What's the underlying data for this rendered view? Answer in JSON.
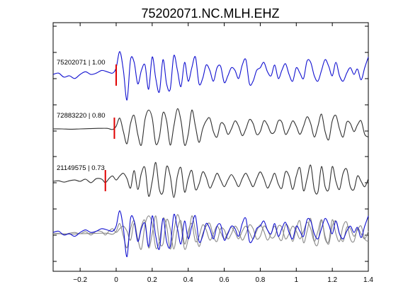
{
  "chart_data": {
    "type": "line",
    "title": "75202071.NC.MLH.EHZ",
    "xlabel": "",
    "ylabel": "",
    "xlim": [
      -0.35,
      1.4
    ],
    "xticks": [
      -0.2,
      0,
      0.2,
      0.4,
      0.6,
      0.8,
      1,
      1.2,
      1.4
    ],
    "xtick_labels": [
      "−0.2",
      "0",
      "0.2",
      "0.4",
      "0.6",
      "0.8",
      "1",
      "1.2",
      "1.4"
    ],
    "grid": false,
    "colors": {
      "reference": "#1010d0",
      "matches": "#303030",
      "overlay": "#8a8a8a",
      "pick": "#e00000"
    },
    "traces": [
      {
        "label": "75202071 | 1.00",
        "id": "75202071",
        "correlation": 1.0,
        "color": "#1010d0",
        "pick_time": 0.0,
        "x": [
          -0.35,
          -0.32,
          -0.29,
          -0.26,
          -0.23,
          -0.2,
          -0.17,
          -0.14,
          -0.11,
          -0.08,
          -0.05,
          -0.02,
          0.0,
          0.02,
          0.04,
          0.06,
          0.08,
          0.1,
          0.12,
          0.14,
          0.16,
          0.18,
          0.2,
          0.22,
          0.24,
          0.26,
          0.28,
          0.3,
          0.32,
          0.34,
          0.36,
          0.38,
          0.4,
          0.42,
          0.44,
          0.46,
          0.48,
          0.5,
          0.52,
          0.54,
          0.56,
          0.58,
          0.6,
          0.62,
          0.64,
          0.66,
          0.68,
          0.7,
          0.72,
          0.74,
          0.76,
          0.78,
          0.8,
          0.82,
          0.84,
          0.86,
          0.88,
          0.9,
          0.92,
          0.94,
          0.96,
          0.98,
          1.0,
          1.02,
          1.04,
          1.06,
          1.08,
          1.1,
          1.12,
          1.14,
          1.16,
          1.18,
          1.2,
          1.22,
          1.24,
          1.26,
          1.28,
          1.3,
          1.32,
          1.34,
          1.36,
          1.38,
          1.4
        ],
        "y": [
          0.05,
          0.1,
          -0.05,
          0.0,
          -0.1,
          0.05,
          0.15,
          0.05,
          0.1,
          0.2,
          0.15,
          0.1,
          0.3,
          0.9,
          0.2,
          -0.9,
          0.6,
          0.5,
          -0.3,
          0.2,
          0.4,
          -0.5,
          0.7,
          -0.1,
          -0.6,
          0.6,
          -0.3,
          -0.5,
          0.75,
          0.2,
          -0.4,
          0.5,
          -0.2,
          0.3,
          0.7,
          -0.3,
          -0.1,
          0.4,
          0.2,
          -0.2,
          0.3,
          0.35,
          -0.25,
          0.0,
          0.3,
          0.2,
          -0.1,
          0.4,
          0.6,
          -0.3,
          -0.2,
          0.2,
          0.3,
          0.5,
          0.15,
          0.0,
          0.4,
          -0.1,
          0.2,
          0.45,
          0.05,
          -0.2,
          0.3,
          0.1,
          -0.1,
          0.55,
          0.5,
          0.0,
          -0.2,
          0.2,
          0.6,
          0.35,
          0.0,
          0.5,
          0.0,
          -0.2,
          0.1,
          0.3,
          0.05,
          0.25,
          -0.15,
          0.3,
          0.7
        ]
      },
      {
        "label": "72883220 | 0.80",
        "id": "72883220",
        "correlation": 0.8,
        "color": "#303030",
        "pick_time": -0.01,
        "x": [
          -0.35,
          -0.3,
          -0.25,
          -0.2,
          -0.15,
          -0.1,
          -0.05,
          -0.02,
          0.0,
          0.02,
          0.04,
          0.06,
          0.08,
          0.1,
          0.12,
          0.14,
          0.16,
          0.18,
          0.2,
          0.22,
          0.24,
          0.26,
          0.28,
          0.3,
          0.32,
          0.34,
          0.36,
          0.38,
          0.4,
          0.42,
          0.44,
          0.46,
          0.48,
          0.5,
          0.52,
          0.54,
          0.56,
          0.58,
          0.6,
          0.62,
          0.64,
          0.66,
          0.68,
          0.7,
          0.72,
          0.74,
          0.76,
          0.78,
          0.8,
          0.82,
          0.84,
          0.86,
          0.88,
          0.9,
          0.92,
          0.94,
          0.96,
          0.98,
          1.0,
          1.02,
          1.04,
          1.06,
          1.08,
          1.1,
          1.12,
          1.14,
          1.16,
          1.18,
          1.2,
          1.22,
          1.24,
          1.26,
          1.28,
          1.3,
          1.32,
          1.34,
          1.36,
          1.38,
          1.4
        ],
        "y": [
          0.0,
          0.0,
          -0.01,
          0.0,
          0.01,
          0.02,
          0.02,
          -0.02,
          0.1,
          0.4,
          -0.1,
          -0.55,
          0.2,
          0.5,
          -0.2,
          -0.6,
          0.35,
          0.7,
          0.4,
          -0.55,
          -0.3,
          0.6,
          0.3,
          -0.6,
          0.1,
          0.75,
          0.3,
          -0.6,
          -0.2,
          0.7,
          0.1,
          -0.5,
          0.0,
          0.3,
          0.4,
          -0.1,
          -0.3,
          0.2,
          0.15,
          -0.2,
          0.0,
          0.3,
          0.1,
          -0.25,
          0.0,
          0.35,
          0.2,
          -0.2,
          -0.1,
          0.3,
          0.15,
          -0.15,
          -0.1,
          0.3,
          0.25,
          -0.2,
          0.0,
          0.3,
          0.1,
          -0.2,
          0.1,
          0.45,
          0.2,
          -0.3,
          0.1,
          0.55,
          -0.1,
          -0.4,
          0.3,
          0.5,
          0.0,
          -0.3,
          0.25,
          0.2,
          -0.1,
          0.15,
          0.3,
          -0.2,
          -0.3
        ]
      },
      {
        "label": "21149575 | 0.73",
        "id": "21149575",
        "correlation": 0.73,
        "color": "#303030",
        "pick_time": -0.06,
        "x": [
          -0.35,
          -0.32,
          -0.29,
          -0.26,
          -0.23,
          -0.2,
          -0.17,
          -0.14,
          -0.11,
          -0.08,
          -0.06,
          -0.04,
          -0.02,
          0.0,
          0.02,
          0.04,
          0.06,
          0.08,
          0.1,
          0.12,
          0.14,
          0.16,
          0.18,
          0.2,
          0.22,
          0.24,
          0.26,
          0.28,
          0.3,
          0.32,
          0.34,
          0.36,
          0.38,
          0.4,
          0.42,
          0.44,
          0.46,
          0.48,
          0.5,
          0.52,
          0.54,
          0.56,
          0.58,
          0.6,
          0.62,
          0.64,
          0.66,
          0.68,
          0.7,
          0.72,
          0.74,
          0.76,
          0.78,
          0.8,
          0.82,
          0.84,
          0.86,
          0.88,
          0.9,
          0.92,
          0.94,
          0.96,
          0.98,
          1.0,
          1.02,
          1.04,
          1.06,
          1.08,
          1.1,
          1.12,
          1.14,
          1.16,
          1.18,
          1.2,
          1.22,
          1.24,
          1.26,
          1.28,
          1.3,
          1.32,
          1.34,
          1.36,
          1.38,
          1.4
        ],
        "y": [
          0.0,
          0.02,
          -0.03,
          0.02,
          0.05,
          0.0,
          0.08,
          -0.05,
          0.1,
          0.08,
          -0.05,
          0.1,
          0.2,
          0.05,
          0.2,
          0.3,
          0.1,
          -0.25,
          0.4,
          -0.3,
          0.3,
          0.5,
          -0.55,
          0.0,
          0.7,
          -0.3,
          -0.4,
          0.55,
          0.2,
          -0.6,
          0.2,
          0.5,
          -0.4,
          0.1,
          0.4,
          -0.3,
          -0.1,
          0.35,
          0.15,
          -0.25,
          0.0,
          0.3,
          0.05,
          -0.2,
          0.05,
          0.25,
          0.05,
          -0.2,
          0.1,
          0.3,
          0.05,
          -0.2,
          0.1,
          0.35,
          0.1,
          -0.25,
          0.0,
          0.3,
          -0.1,
          -0.25,
          0.35,
          0.2,
          -0.3,
          0.2,
          0.5,
          -0.35,
          0.1,
          0.6,
          -0.3,
          -0.4,
          0.55,
          -0.2,
          -0.3,
          0.55,
          0.0,
          -0.3,
          0.3,
          0.45,
          -0.2,
          -0.3,
          0.2,
          0.0,
          -0.2,
          0.1
        ]
      }
    ],
    "overlay": {
      "description_label": "",
      "series_colors": [
        "#1010d0",
        "#8a8a8a",
        "#8a8a8a"
      ]
    }
  }
}
